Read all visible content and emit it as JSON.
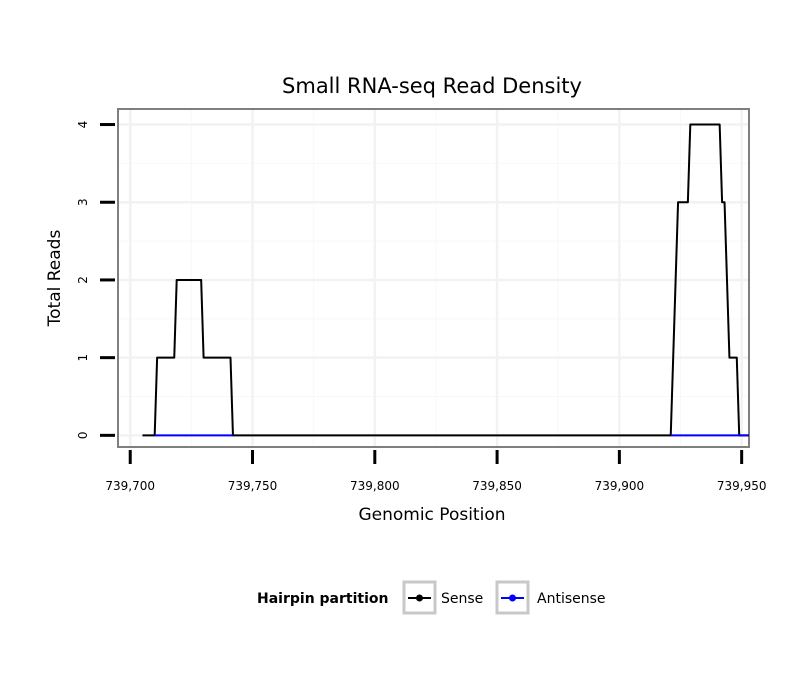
{
  "chart_data": {
    "type": "line",
    "title": "Small RNA-seq Read Density",
    "xlabel": "Genomic Position",
    "ylabel": "Total Reads",
    "xlim": [
      739695,
      739953
    ],
    "ylim": [
      -0.15,
      4.2
    ],
    "x_ticks": [
      739700,
      739750,
      739800,
      739850,
      739900,
      739950
    ],
    "x_tick_labels": [
      "739,700",
      "739,750",
      "739,800",
      "739,850",
      "739,900",
      "739,950"
    ],
    "y_ticks": [
      0,
      1,
      2,
      3,
      4
    ],
    "y_tick_labels": [
      "0",
      "1",
      "2",
      "3",
      "4"
    ],
    "grid": true,
    "legend": {
      "title": "Hairpin partition",
      "position": "bottom"
    },
    "series": [
      {
        "name": "Sense",
        "color": "#000000",
        "points": [
          [
            739705,
            0
          ],
          [
            739710,
            0
          ],
          [
            739711,
            1
          ],
          [
            739718,
            1
          ],
          [
            739719,
            2
          ],
          [
            739729,
            2
          ],
          [
            739730,
            1
          ],
          [
            739741,
            1
          ],
          [
            739742,
            0
          ],
          [
            739921,
            0
          ],
          [
            739923,
            2
          ],
          [
            739924,
            3
          ],
          [
            739928,
            3
          ],
          [
            739929,
            4
          ],
          [
            739941,
            4
          ],
          [
            739942,
            3
          ],
          [
            739943,
            3
          ],
          [
            739945,
            1
          ],
          [
            739948,
            1
          ],
          [
            739949,
            0
          ],
          [
            739953,
            0
          ]
        ]
      },
      {
        "name": "Antisense",
        "color": "#0000ff",
        "points": [
          [
            739710,
            0
          ],
          [
            739742,
            0
          ]
        ],
        "points2": [
          [
            739921,
            0
          ],
          [
            739953,
            0
          ]
        ]
      }
    ]
  }
}
